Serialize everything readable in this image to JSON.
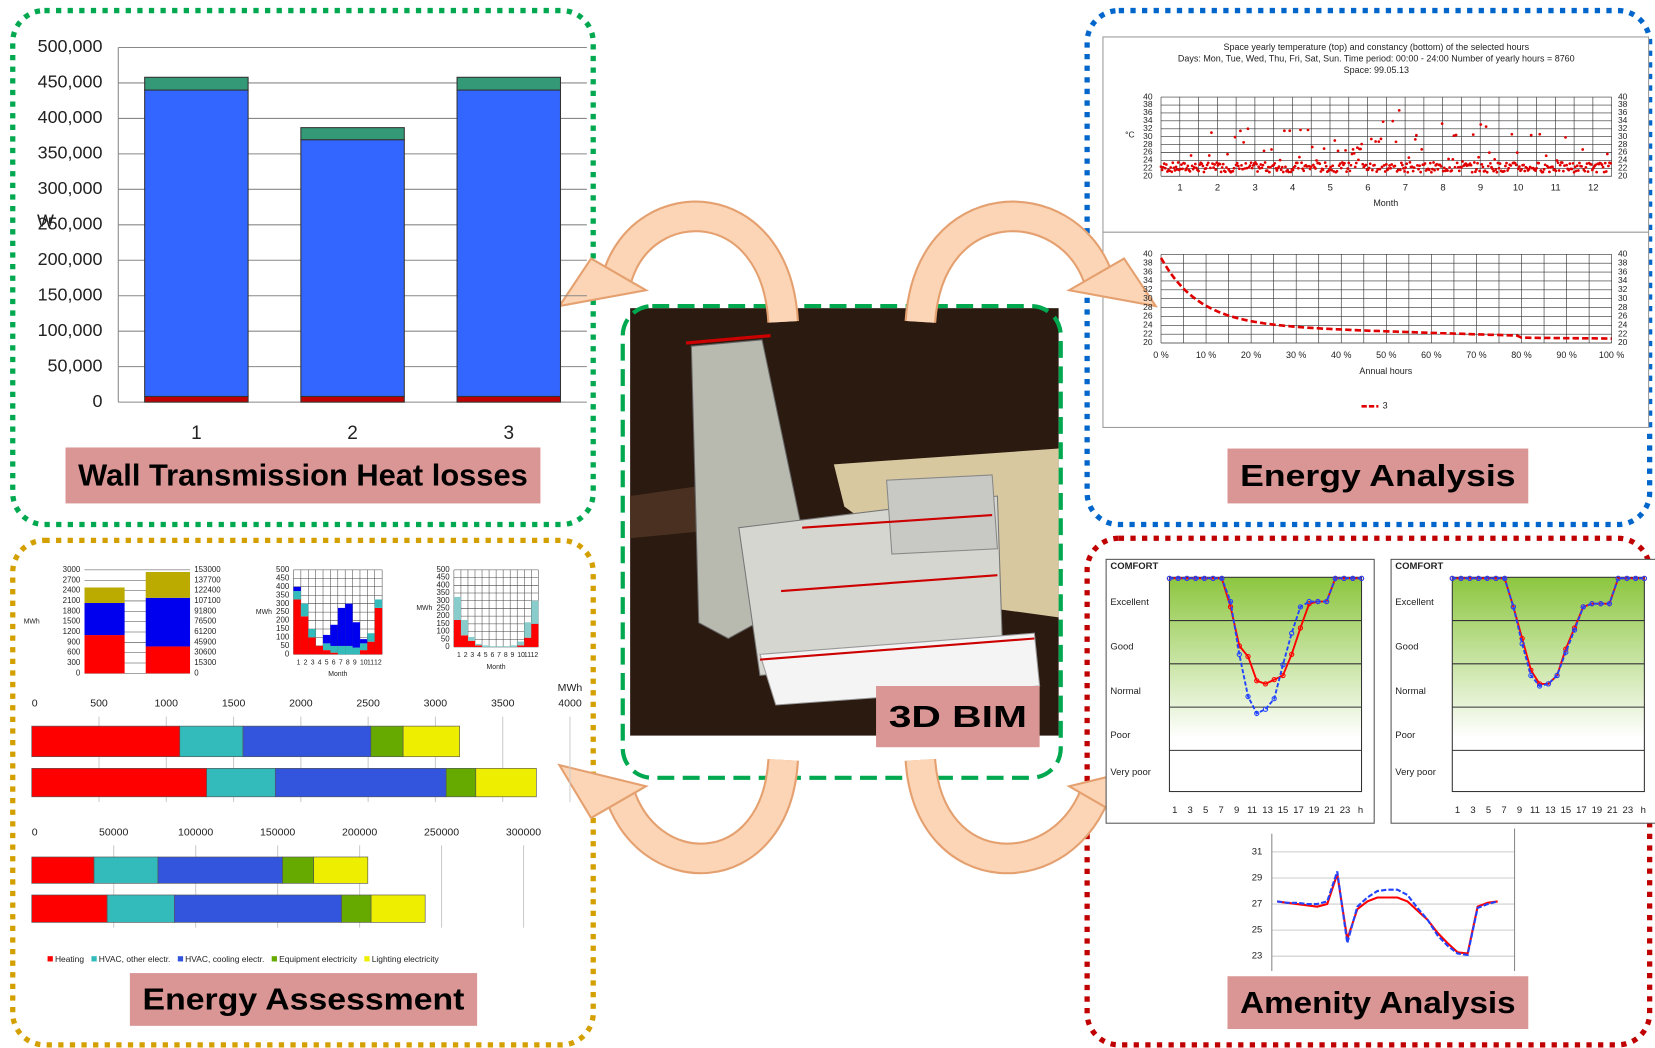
{
  "wall": {
    "label": "Wall Transmission Heat losses",
    "unit": "W",
    "chart": {
      "type": "bar",
      "categories": [
        "1",
        "2",
        "3"
      ],
      "series": [
        {
          "color": "#c00000",
          "values": [
            8000,
            8000,
            8000
          ]
        },
        {
          "color": "#3366ff",
          "values": [
            432000,
            362000,
            432000
          ]
        },
        {
          "color": "#339977",
          "values": [
            18000,
            17000,
            18000
          ]
        }
      ],
      "ylim": [
        0,
        500000
      ],
      "yticks": [
        0,
        {
          "value": 50000,
          "label": "50,000"
        },
        {
          "value": 100000,
          "label": "100,000"
        },
        {
          "value": 150000,
          "label": "150,000"
        },
        {
          "value": 200000,
          "label": "200,000"
        },
        {
          "value": 250000,
          "label": "250,000"
        },
        {
          "value": 300000,
          "label": "300,000"
        },
        {
          "value": 350000,
          "label": "350,000"
        },
        {
          "value": 400000,
          "label": "400,000"
        },
        {
          "value": 450000,
          "label": "450,000"
        },
        {
          "value": 500000,
          "label": "500,000"
        }
      ]
    }
  },
  "analysis": {
    "label": "Energy Analysis",
    "title": [
      "Space yearly temperature (top) and constancy (bottom) of the selected hours",
      "Days: Mon, Tue, Wed, Thu, Fri, Sat, Sun.  Time period: 00:00 - 24:00    Number of yearly hours = 8760",
      "Space: 99.05.13"
    ],
    "yunit": "°C",
    "ylim": [
      20,
      40
    ],
    "yticks": [
      20,
      22,
      24,
      26,
      28,
      30,
      32,
      34,
      36,
      38,
      40
    ],
    "months": [
      "1",
      "2",
      "3",
      "4",
      "5",
      "6",
      "7",
      "8",
      "9",
      "10",
      "11",
      "12"
    ],
    "xlabel": "Month",
    "pticks": [
      "0 %",
      "10 %",
      "20 %",
      "30 %",
      "40 %",
      "50 %",
      "60 %",
      "70 %",
      "80 %",
      "90 %",
      "100 %"
    ],
    "xlabel2": "Annual hours",
    "legend": "3"
  },
  "assessment": {
    "label": "Energy Assessment",
    "unit": "MWh",
    "small1": {
      "yticks": [
        0,
        300,
        600,
        900,
        1200,
        1500,
        1800,
        2100,
        2400,
        2700,
        3000
      ],
      "y2ticks": [
        0,
        15300,
        30600,
        45900,
        61200,
        76500,
        91800,
        107100,
        122400,
        137700,
        153000
      ],
      "unit": "MWh"
    },
    "small2": {
      "yticks": [
        0,
        50,
        100,
        150,
        200,
        250,
        300,
        350,
        400,
        450,
        500
      ],
      "unit": "MWh",
      "xlabel": "Month",
      "months": [
        "1",
        "2",
        "3",
        "4",
        "5",
        "6",
        "7",
        "8",
        "9",
        "10",
        "11",
        "12"
      ]
    },
    "small3": {
      "yticks": [
        0,
        50,
        100,
        150,
        200,
        250,
        300,
        350,
        400,
        450,
        500
      ],
      "unit": "MWh",
      "xlabel": "Month",
      "months": [
        "1",
        "2",
        "3",
        "4",
        "5",
        "6",
        "7",
        "8",
        "9",
        "10",
        "11",
        "12"
      ]
    },
    "bars1": {
      "type": "bar",
      "xlim": [
        0,
        4000
      ],
      "xticks": [
        0,
        500,
        1000,
        1500,
        2000,
        2500,
        3000,
        3500,
        4000
      ],
      "series": [
        {
          "name": "Heating",
          "color": "#ff0000",
          "values": [
            1100,
            1300
          ]
        },
        {
          "name": "HVAC, other electr.",
          "color": "#33bbbb",
          "values": [
            470,
            510
          ]
        },
        {
          "name": "HVAC, cooling electr.",
          "color": "#3355dd",
          "values": [
            950,
            1270
          ]
        },
        {
          "name": "Equipment electricity",
          "color": "#66aa00",
          "values": [
            240,
            220
          ]
        },
        {
          "name": "Lighting electricity",
          "color": "#eeee00",
          "values": [
            420,
            450
          ]
        }
      ]
    },
    "bars2": {
      "type": "bar",
      "xlim": [
        0,
        300000
      ],
      "xticks": [
        0,
        50000,
        100000,
        150000,
        200000,
        250000,
        300000
      ],
      "series": [
        {
          "color": "#ff0000",
          "values": [
            38000,
            46000
          ]
        },
        {
          "color": "#33bbbb",
          "values": [
            39000,
            41000
          ]
        },
        {
          "color": "#3355dd",
          "values": [
            76000,
            102000
          ]
        },
        {
          "color": "#66aa00",
          "values": [
            19000,
            18000
          ]
        },
        {
          "color": "#eeee00",
          "values": [
            33000,
            33000
          ]
        }
      ]
    }
  },
  "amenity": {
    "label": "Amenity Analysis",
    "comfort": "COMFORT",
    "levels": [
      "Excellent",
      "Good",
      "Normal",
      "Poor",
      "Very poor"
    ],
    "hours": [
      "1",
      "3",
      "5",
      "7",
      "9",
      "11",
      "13",
      "15",
      "17",
      "19",
      "21",
      "23",
      "h"
    ],
    "yticks": [
      23,
      25,
      27,
      29,
      31
    ]
  },
  "bim": {
    "label": "3D BIM"
  }
}
